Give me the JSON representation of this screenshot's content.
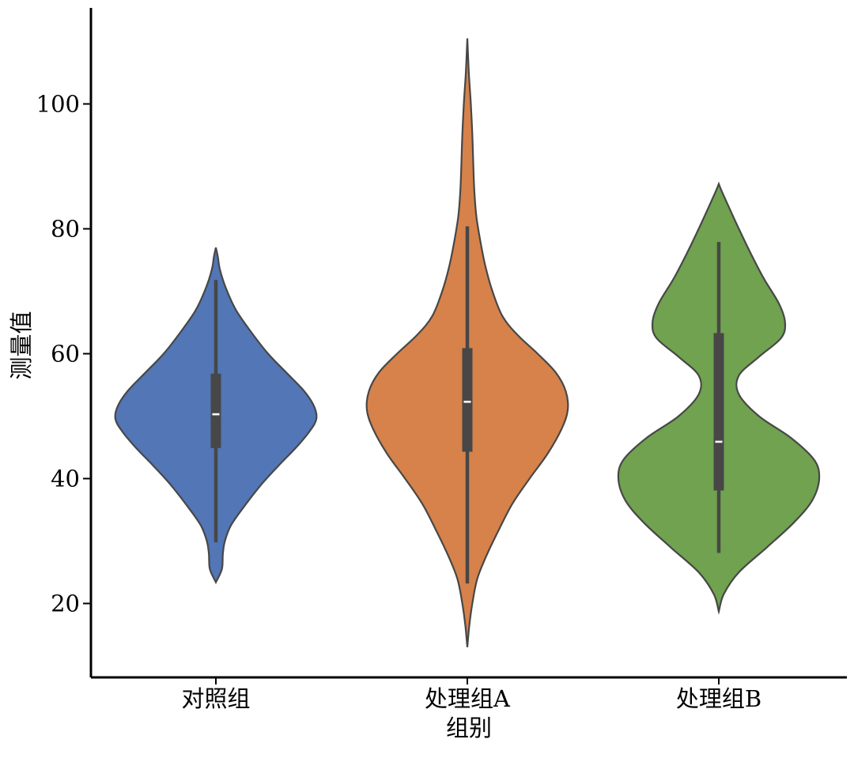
{
  "chart_data": {
    "type": "violin",
    "xlabel": "组别",
    "ylabel": "测量值",
    "categories": [
      "对照组",
      "处理组A",
      "处理组B"
    ],
    "ylim": [
      8.5,
      115
    ],
    "yticks": [
      20,
      40,
      60,
      80,
      100
    ],
    "grid": false,
    "series": [
      {
        "category": "对照组",
        "color": "#5276b6",
        "extent": [
          23.4,
          77.0
        ],
        "whisker": [
          29.8,
          71.8
        ],
        "box": [
          44.9,
          56.8
        ],
        "median": 50.3,
        "density_profile": [
          [
            23.4,
            0.0
          ],
          [
            25.5,
            0.06
          ],
          [
            28.0,
            0.07
          ],
          [
            30.0,
            0.09
          ],
          [
            32.5,
            0.15
          ],
          [
            35.5,
            0.28
          ],
          [
            39.0,
            0.45
          ],
          [
            42.0,
            0.62
          ],
          [
            45.0,
            0.8
          ],
          [
            47.5,
            0.93
          ],
          [
            49.5,
            1.0
          ],
          [
            51.5,
            0.98
          ],
          [
            54.0,
            0.88
          ],
          [
            57.0,
            0.7
          ],
          [
            60.0,
            0.52
          ],
          [
            63.5,
            0.35
          ],
          [
            67.0,
            0.2
          ],
          [
            70.5,
            0.1
          ],
          [
            73.5,
            0.04
          ],
          [
            75.5,
            0.02
          ],
          [
            77.0,
            0.0
          ]
        ]
      },
      {
        "category": "处理组A",
        "color": "#d6824a",
        "extent": [
          13.0,
          110.5
        ],
        "whisker": [
          23.2,
          80.4
        ],
        "box": [
          44.3,
          60.9
        ],
        "median": 52.3,
        "density_profile": [
          [
            13.0,
            0.0
          ],
          [
            16.5,
            0.02
          ],
          [
            20.0,
            0.05
          ],
          [
            24.0,
            0.1
          ],
          [
            28.0,
            0.2
          ],
          [
            32.0,
            0.32
          ],
          [
            36.0,
            0.45
          ],
          [
            40.0,
            0.62
          ],
          [
            44.0,
            0.8
          ],
          [
            48.0,
            0.94
          ],
          [
            51.0,
            1.0
          ],
          [
            54.0,
            0.98
          ],
          [
            57.0,
            0.88
          ],
          [
            60.0,
            0.7
          ],
          [
            63.0,
            0.5
          ],
          [
            66.0,
            0.35
          ],
          [
            70.0,
            0.25
          ],
          [
            74.0,
            0.18
          ],
          [
            78.0,
            0.13
          ],
          [
            82.0,
            0.09
          ],
          [
            86.0,
            0.07
          ],
          [
            90.0,
            0.06
          ],
          [
            95.0,
            0.05
          ],
          [
            100.0,
            0.035
          ],
          [
            105.0,
            0.015
          ],
          [
            110.5,
            0.0
          ]
        ]
      },
      {
        "category": "处理组B",
        "color": "#70a24f",
        "extent": [
          18.7,
          87.2
        ],
        "whisker": [
          28.1,
          77.9
        ],
        "box": [
          38.1,
          63.3
        ],
        "median": 45.9,
        "density_profile": [
          [
            18.7,
            0.0
          ],
          [
            21.5,
            0.05
          ],
          [
            25.0,
            0.2
          ],
          [
            29.0,
            0.48
          ],
          [
            33.0,
            0.75
          ],
          [
            36.5,
            0.93
          ],
          [
            40.0,
            1.0
          ],
          [
            43.0,
            0.95
          ],
          [
            46.5,
            0.72
          ],
          [
            50.0,
            0.4
          ],
          [
            53.5,
            0.2
          ],
          [
            56.5,
            0.2
          ],
          [
            59.5,
            0.4
          ],
          [
            62.5,
            0.62
          ],
          [
            65.0,
            0.66
          ],
          [
            68.0,
            0.6
          ],
          [
            72.0,
            0.45
          ],
          [
            76.0,
            0.32
          ],
          [
            80.0,
            0.2
          ],
          [
            83.5,
            0.1
          ],
          [
            86.0,
            0.03
          ],
          [
            87.2,
            0.0
          ]
        ]
      }
    ]
  }
}
